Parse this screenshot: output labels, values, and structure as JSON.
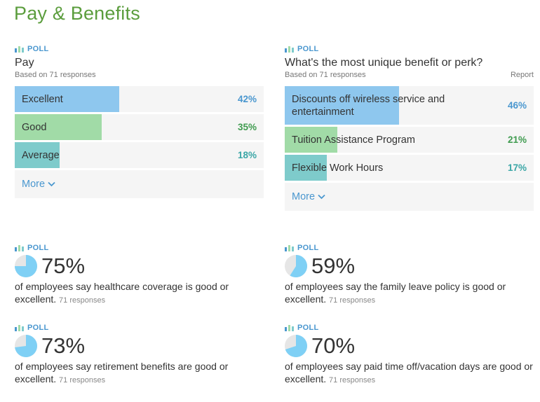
{
  "page": {
    "title": "Pay & Benefits"
  },
  "poll_label": "POLL",
  "colors": {
    "title_green": "#5b9d3d",
    "blue_fill": "#8ec7ee",
    "green_fill": "#a1dba7",
    "teal_fill": "#7ecbcb",
    "blue_text": "#4a97cf",
    "green_text": "#3f9b4f",
    "teal_text": "#3aa6a6",
    "pie_fill": "#7fd0f5",
    "pie_bg": "#e6e6e6"
  },
  "pay_poll": {
    "question": "Pay",
    "based_on": "Based on 71 responses",
    "more_label": "More",
    "rows": [
      {
        "label": "Excellent",
        "percent_text": "42%",
        "value": 42,
        "color": "blue"
      },
      {
        "label": "Good",
        "percent_text": "35%",
        "value": 35,
        "color": "green"
      },
      {
        "label": "Average",
        "percent_text": "18%",
        "value": 18,
        "color": "teal"
      }
    ]
  },
  "perk_poll": {
    "question": "What's the most unique benefit or perk?",
    "based_on": "Based on 71 responses",
    "report_label": "Report",
    "more_label": "More",
    "rows": [
      {
        "label": "Discounts off wireless service and entertainment",
        "percent_text": "46%",
        "value": 46,
        "color": "blue"
      },
      {
        "label": "Tuition Assistance Program",
        "percent_text": "21%",
        "value": 21,
        "color": "green"
      },
      {
        "label": "Flexible Work Hours",
        "percent_text": "17%",
        "value": 17,
        "color": "teal"
      }
    ]
  },
  "stats": [
    {
      "percent_text": "75%",
      "value": 75,
      "description": "of employees say healthcare coverage is good or excellent.",
      "responses": "71 responses"
    },
    {
      "percent_text": "59%",
      "value": 59,
      "description": "of employees say the family leave policy is good or excellent.",
      "responses": "71 responses"
    },
    {
      "percent_text": "73%",
      "value": 73,
      "description": "of employees say retirement benefits are good or excellent.",
      "responses": "71 responses"
    },
    {
      "percent_text": "70%",
      "value": 70,
      "description": "of employees say paid time off/vacation days are good or excellent.",
      "responses": "71 responses"
    }
  ]
}
